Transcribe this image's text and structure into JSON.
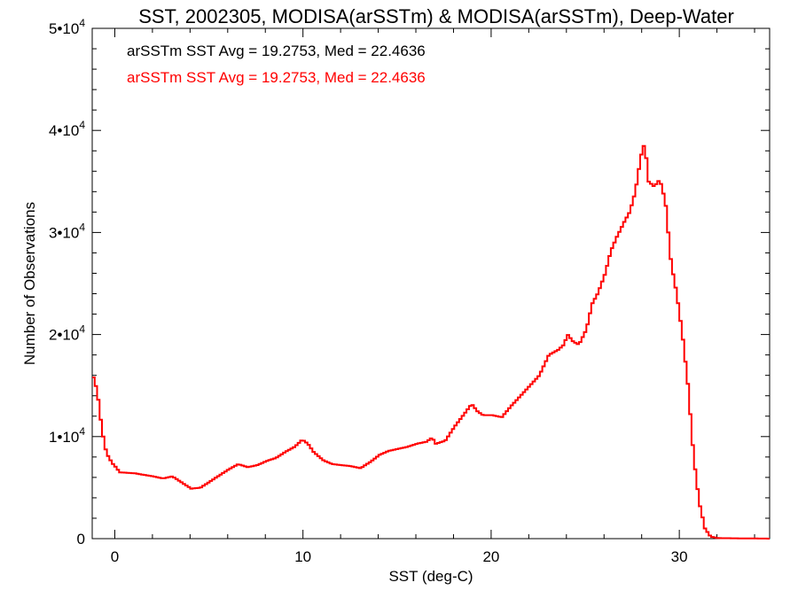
{
  "chart_data": {
    "type": "histogram-step",
    "title": "SST, 2002305, MODISA(arSSTm) & MODISA(arSSTm), Deep-Water",
    "xlabel": "SST (deg-C)",
    "ylabel": "Number of Observations",
    "xlim": [
      -1.2,
      34.8
    ],
    "ylim": [
      0,
      50000
    ],
    "x_ticks": [
      {
        "value": 0,
        "label": "0"
      },
      {
        "value": 10,
        "label": "10"
      },
      {
        "value": 20,
        "label": "20"
      },
      {
        "value": 30,
        "label": "30"
      }
    ],
    "y_ticks": [
      {
        "value": 0,
        "label": "0",
        "exponent": ""
      },
      {
        "value": 10000,
        "label": "1•10",
        "exponent": "4"
      },
      {
        "value": 20000,
        "label": "2•10",
        "exponent": "4"
      },
      {
        "value": 30000,
        "label": "3•10",
        "exponent": "4"
      },
      {
        "value": 40000,
        "label": "4•10",
        "exponent": "4"
      },
      {
        "value": 50000,
        "label": "5•10",
        "exponent": "4"
      }
    ],
    "annotations": [
      {
        "text": "arSSTm SST Avg = 19.2753, Med = 22.4636",
        "color": "#000000"
      },
      {
        "text": "arSSTm SST Avg = 19.2753, Med = 22.4636",
        "color": "#ff0000"
      }
    ],
    "series": [
      {
        "color": "#ff0000",
        "points": [
          [
            -1.2,
            15800
          ],
          [
            -1.0,
            14500
          ],
          [
            -0.8,
            11500
          ],
          [
            -0.6,
            9000
          ],
          [
            -0.4,
            8000
          ],
          [
            -0.2,
            7400
          ],
          [
            0.0,
            7000
          ],
          [
            0.2,
            6500
          ],
          [
            1.0,
            6400
          ],
          [
            2.0,
            6100
          ],
          [
            2.5,
            5900
          ],
          [
            3.0,
            6100
          ],
          [
            3.5,
            5500
          ],
          [
            4.0,
            4900
          ],
          [
            4.5,
            5000
          ],
          [
            5.0,
            5600
          ],
          [
            5.5,
            6200
          ],
          [
            6.0,
            6800
          ],
          [
            6.5,
            7300
          ],
          [
            7.0,
            7000
          ],
          [
            7.5,
            7200
          ],
          [
            8.0,
            7600
          ],
          [
            8.5,
            7900
          ],
          [
            9.0,
            8500
          ],
          [
            9.5,
            9000
          ],
          [
            9.9,
            9700
          ],
          [
            10.2,
            9300
          ],
          [
            10.5,
            8500
          ],
          [
            11.0,
            7700
          ],
          [
            11.5,
            7300
          ],
          [
            12.0,
            7200
          ],
          [
            12.5,
            7100
          ],
          [
            13.0,
            6900
          ],
          [
            13.5,
            7500
          ],
          [
            14.0,
            8200
          ],
          [
            14.5,
            8600
          ],
          [
            15.0,
            8800
          ],
          [
            15.5,
            9000
          ],
          [
            16.0,
            9300
          ],
          [
            16.5,
            9500
          ],
          [
            16.8,
            9900
          ],
          [
            17.0,
            9300
          ],
          [
            17.5,
            9600
          ],
          [
            18.0,
            11000
          ],
          [
            18.5,
            12200
          ],
          [
            18.9,
            13200
          ],
          [
            19.2,
            12500
          ],
          [
            19.5,
            12100
          ],
          [
            20.0,
            12100
          ],
          [
            20.5,
            11900
          ],
          [
            21.0,
            13000
          ],
          [
            21.5,
            14000
          ],
          [
            22.0,
            15000
          ],
          [
            22.5,
            16000
          ],
          [
            23.0,
            18000
          ],
          [
            23.5,
            18500
          ],
          [
            23.8,
            19000
          ],
          [
            24.0,
            20000
          ],
          [
            24.3,
            19300
          ],
          [
            24.6,
            19000
          ],
          [
            25.0,
            20500
          ],
          [
            25.3,
            23000
          ],
          [
            25.6,
            24000
          ],
          [
            26.0,
            26000
          ],
          [
            26.3,
            28200
          ],
          [
            26.6,
            29500
          ],
          [
            27.0,
            31000
          ],
          [
            27.3,
            32000
          ],
          [
            27.6,
            34000
          ],
          [
            27.9,
            37500
          ],
          [
            28.1,
            38800
          ],
          [
            28.3,
            35000
          ],
          [
            28.6,
            34500
          ],
          [
            28.9,
            35200
          ],
          [
            29.2,
            33000
          ],
          [
            29.5,
            27000
          ],
          [
            29.8,
            24000
          ],
          [
            30.1,
            20000
          ],
          [
            30.4,
            15000
          ],
          [
            30.7,
            8000
          ],
          [
            31.0,
            3500
          ],
          [
            31.3,
            1000
          ],
          [
            31.6,
            200
          ],
          [
            32.0,
            50
          ],
          [
            34.8,
            0
          ]
        ]
      }
    ]
  }
}
